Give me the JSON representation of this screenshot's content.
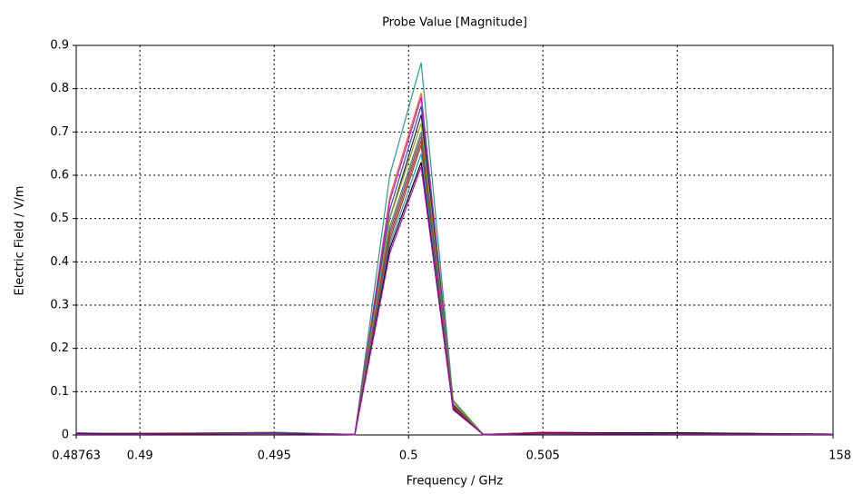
{
  "chart_data": {
    "type": "line",
    "title": "Probe Value [Magnitude]",
    "x_label": "Frequency / GHz",
    "y_label": "Electric Field / V/m",
    "x": [
      0.48763,
      0.49,
      0.495,
      0.498,
      0.4993,
      0.50047,
      0.50166,
      0.50278,
      0.505,
      0.51,
      0.5158
    ],
    "xlim": [
      0.48763,
      0.5158
    ],
    "xticks": [
      0.48763,
      0.49,
      0.495,
      0.5,
      0.505,
      {
        "value": 0.51,
        "label": null
      },
      {
        "value": 0.5158,
        "label": "158"
      }
    ],
    "ylim": [
      0,
      0.9
    ],
    "yticks": [
      0,
      0.1,
      0.2,
      0.3,
      0.4,
      0.5,
      0.6,
      0.7,
      0.8,
      0.9
    ],
    "grid": true,
    "series": [
      {
        "color": "#2a9d8f",
        "values": [
          0.004,
          0.003,
          0.005,
          0.001,
          0.6,
          0.86,
          0.08,
          0.001,
          0.004,
          0.003,
          0.002
        ]
      },
      {
        "color": "#e07020",
        "values": [
          0.003,
          0.004,
          0.004,
          0.001,
          0.55,
          0.79,
          0.075,
          0.001,
          0.005,
          0.003,
          0.002
        ]
      },
      {
        "color": "#e000e0",
        "values": [
          0.002,
          0.003,
          0.003,
          0.001,
          0.54,
          0.78,
          0.07,
          0.001,
          0.003,
          0.002,
          0.002
        ]
      },
      {
        "color": "#3050c0",
        "values": [
          0.005,
          0.002,
          0.006,
          0.001,
          0.52,
          0.76,
          0.07,
          0.001,
          0.006,
          0.004,
          0.002
        ]
      },
      {
        "color": "#202060",
        "values": [
          0.003,
          0.003,
          0.004,
          0.001,
          0.5,
          0.74,
          0.068,
          0.001,
          0.004,
          0.003,
          0.002
        ]
      },
      {
        "color": "#a0a000",
        "values": [
          0.002,
          0.004,
          0.005,
          0.001,
          0.5,
          0.72,
          0.075,
          0.001,
          0.004,
          0.002,
          0.002
        ]
      },
      {
        "color": "#3a9a3a",
        "values": [
          0.003,
          0.003,
          0.006,
          0.001,
          0.48,
          0.7,
          0.08,
          0.001,
          0.003,
          0.003,
          0.002
        ]
      },
      {
        "color": "#8040a0",
        "values": [
          0.004,
          0.002,
          0.004,
          0.001,
          0.47,
          0.69,
          0.065,
          0.001,
          0.005,
          0.004,
          0.002
        ]
      },
      {
        "color": "#d03030",
        "values": [
          0.002,
          0.003,
          0.003,
          0.001,
          0.46,
          0.68,
          0.065,
          0.001,
          0.006,
          0.003,
          0.002
        ]
      },
      {
        "color": "#805020",
        "values": [
          0.003,
          0.004,
          0.004,
          0.001,
          0.45,
          0.67,
          0.062,
          0.001,
          0.004,
          0.004,
          0.002
        ]
      },
      {
        "color": "#20a0c0",
        "values": [
          0.002,
          0.002,
          0.005,
          0.001,
          0.44,
          0.65,
          0.06,
          0.001,
          0.003,
          0.003,
          0.002
        ]
      },
      {
        "color": "#000000",
        "values": [
          0.003,
          0.003,
          0.004,
          0.001,
          0.43,
          0.63,
          0.06,
          0.001,
          0.004,
          0.005,
          0.002
        ]
      },
      {
        "color": "#c000c0",
        "values": [
          0.002,
          0.002,
          0.003,
          0.001,
          0.42,
          0.62,
          0.058,
          0.001,
          0.003,
          0.002,
          0.002
        ]
      }
    ]
  }
}
